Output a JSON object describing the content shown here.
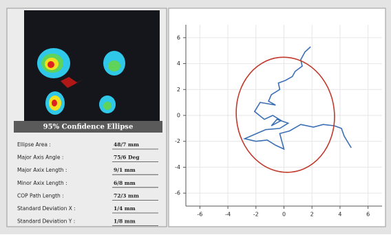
{
  "panel": {
    "title": "95% Confidence Ellipse",
    "rows": [
      {
        "label": "Ellipse Area :",
        "value": "48/7 mm"
      },
      {
        "label": "Major Axis Angle :",
        "value": "75/6 Deg"
      },
      {
        "label": "Major Axix Length :",
        "value": "9/1 mm"
      },
      {
        "label": "Minor Axix Length :",
        "value": "6/8 mm"
      },
      {
        "label": "COP Path Length :",
        "value": "72/3 mm"
      },
      {
        "label": "Standard Deviation X :",
        "value": "1/4 mm"
      },
      {
        "label": "Standard Deviation Y :",
        "value": "1/8 mm"
      }
    ]
  },
  "chart_data": {
    "type": "line",
    "xlim": [
      -7,
      7
    ],
    "ylim": [
      -7,
      7
    ],
    "xticks": [
      -6,
      -4,
      -2,
      0,
      2,
      4,
      6
    ],
    "yticks": [
      -6,
      -4,
      -2,
      0,
      2,
      4,
      6
    ],
    "grid": true,
    "ellipse": {
      "cx": 0.1,
      "cy": 0.05,
      "rx": 3.5,
      "ry": 4.45,
      "angle": -6,
      "color": "#c0392b"
    },
    "series": [
      {
        "color": "#3a6fb5",
        "x": [
          1.9,
          1.5,
          1.2,
          1.3,
          0.8,
          0.6,
          0.1,
          -0.4,
          -0.3,
          -0.9,
          -1.1,
          -0.6,
          -1.7,
          -2.1,
          -1.4,
          -0.8,
          -0.2,
          -0.9,
          -0.5,
          0.3,
          -0.3,
          -1.3,
          -2.8,
          -2.0,
          -1.2,
          -0.6,
          0.0,
          -0.3,
          0.4,
          1.2,
          2.1,
          2.8,
          3.6,
          4.1,
          4.3,
          4.8
        ],
        "y": [
          5.3,
          4.9,
          4.3,
          3.8,
          3.4,
          3.0,
          2.7,
          2.5,
          2.0,
          1.6,
          1.1,
          0.8,
          1.0,
          0.3,
          -0.3,
          0.0,
          -0.4,
          -0.8,
          -0.3,
          -0.6,
          -1.0,
          -1.1,
          -1.8,
          -2.0,
          -1.9,
          -2.3,
          -2.6,
          -1.4,
          -1.2,
          -0.7,
          -0.9,
          -0.7,
          -0.8,
          -1.0,
          -1.6,
          -2.5
        ]
      }
    ]
  }
}
